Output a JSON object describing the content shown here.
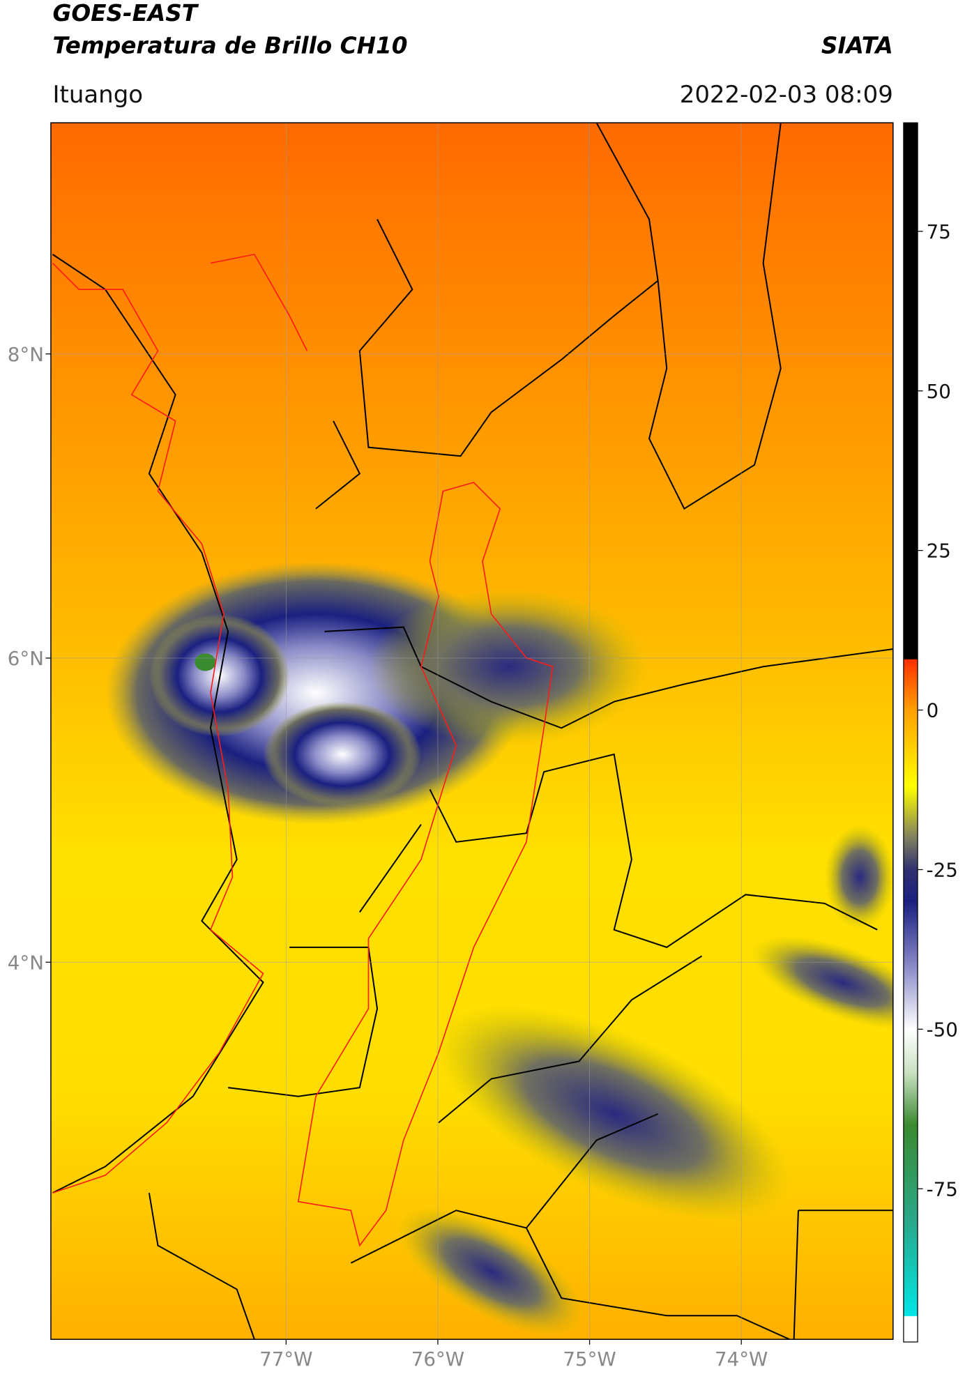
{
  "header": {
    "title_line1": "GOES-EAST",
    "title_line2": "Temperatura de Brillo CH10",
    "source": "SIATA",
    "location": "Ituango",
    "datetime": "2022-02-03 08:09"
  },
  "map": {
    "lonlim": [
      -78.55,
      -73.0
    ],
    "latlim": [
      1.52,
      9.52
    ],
    "lat_ticks": [
      {
        "value": 8,
        "label": "8°N"
      },
      {
        "value": 6,
        "label": "6°N"
      },
      {
        "value": 4,
        "label": "4°N"
      }
    ],
    "lon_ticks": [
      {
        "value": -77,
        "label": "77°W"
      },
      {
        "value": -76,
        "label": "76°W"
      },
      {
        "value": -75,
        "label": "75°W"
      },
      {
        "value": -74,
        "label": "74°W"
      }
    ],
    "grid": true,
    "colorbar": {
      "lim": [
        -99,
        92
      ],
      "ticks": [
        75,
        50,
        25,
        0,
        -25,
        -50,
        -75
      ],
      "colormap": [
        {
          "value": -99,
          "color": "#ffffff"
        },
        {
          "value": -95,
          "color": "#ffffff"
        },
        {
          "value": -94.9,
          "color": "#00e5e5"
        },
        {
          "value": -80,
          "color": "#2aa88a"
        },
        {
          "value": -65,
          "color": "#3a8a30"
        },
        {
          "value": -57,
          "color": "#c8e0c0"
        },
        {
          "value": -50,
          "color": "#ffffff"
        },
        {
          "value": -40,
          "color": "#8888c8"
        },
        {
          "value": -30,
          "color": "#1a2080"
        },
        {
          "value": -25,
          "color": "#303070"
        },
        {
          "value": -20,
          "color": "#808060"
        },
        {
          "value": -12,
          "color": "#ffff00"
        },
        {
          "value": 0,
          "color": "#ffa000"
        },
        {
          "value": 7.9,
          "color": "#ff3000"
        },
        {
          "value": 8,
          "color": "#000000"
        },
        {
          "value": 92,
          "color": "#000000"
        }
      ]
    }
  }
}
